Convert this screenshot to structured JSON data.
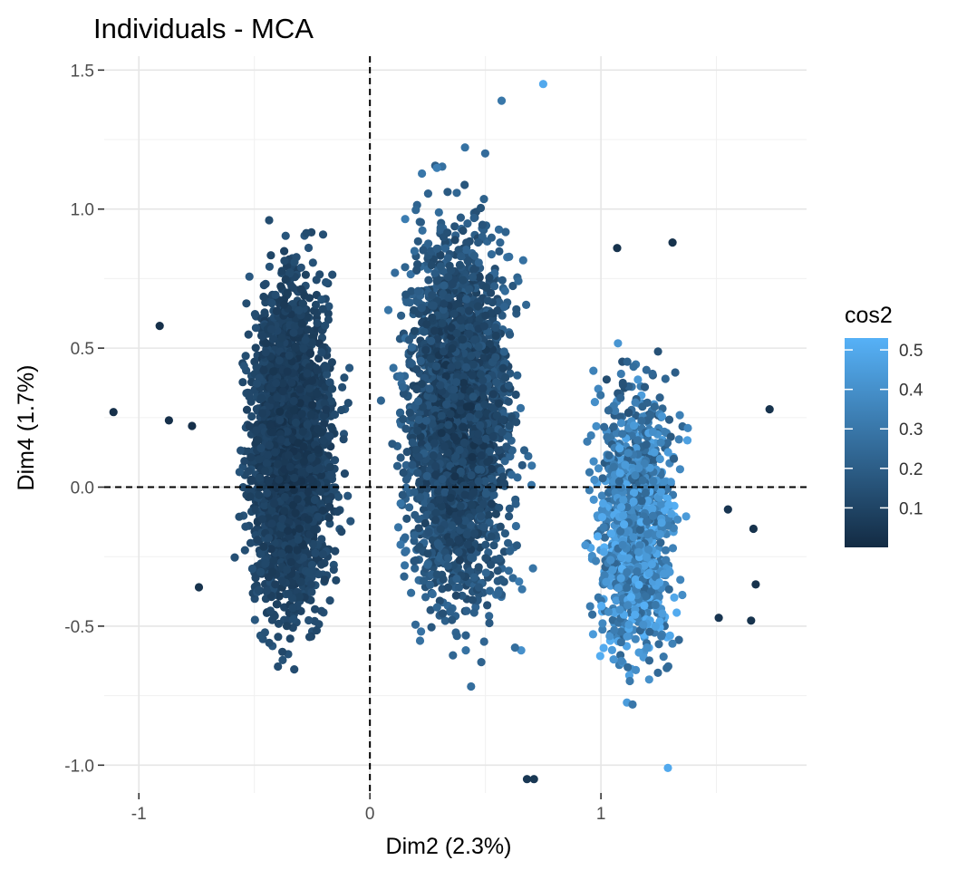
{
  "chart_data": {
    "type": "scatter",
    "title": "Individuals - MCA",
    "xlabel": "Dim2 (2.3%)",
    "ylabel": "Dim4 (1.7%)",
    "xlim": [
      -1.15,
      1.89
    ],
    "ylim": [
      -1.1,
      1.55
    ],
    "x_ticks": [
      -1,
      0,
      1
    ],
    "x_tick_labels": [
      "-1",
      "0",
      "1"
    ],
    "y_ticks": [
      -1.0,
      -0.5,
      0.0,
      0.5,
      1.0,
      1.5
    ],
    "y_tick_labels": [
      "-1.0",
      "-0.5",
      "0.0",
      "0.5",
      "1.0",
      "1.5"
    ],
    "grid": true,
    "reference_lines": {
      "x": 0,
      "y": 0,
      "style": "dashed"
    },
    "color_variable": "cos2",
    "legend": {
      "title": "cos2",
      "position": "right",
      "range": [
        0.0,
        0.53
      ],
      "ticks": [
        0.1,
        0.2,
        0.3,
        0.4,
        0.5
      ],
      "tick_labels": [
        "0.1",
        "0.2",
        "0.3",
        "0.4",
        "0.5"
      ],
      "low_color": "#132B43",
      "high_color": "#56B1F7"
    },
    "clusters": [
      {
        "name": "left",
        "x_range": [
          -0.65,
          -0.03
        ],
        "y_range": [
          -0.85,
          1.15
        ],
        "cos2_range": [
          0.02,
          0.22
        ],
        "density": "high"
      },
      {
        "name": "center",
        "x_range": [
          0.0,
          0.78
        ],
        "y_range": [
          -0.9,
          1.4
        ],
        "cos2_range": [
          0.02,
          0.4
        ],
        "density": "high"
      },
      {
        "name": "right",
        "x_range": [
          0.85,
          1.45
        ],
        "y_range": [
          -1.0,
          0.75
        ],
        "cos2_range": [
          0.05,
          0.53
        ],
        "density": "medium"
      }
    ],
    "outliers": [
      {
        "x": -1.11,
        "y": 0.27,
        "cos2": 0.02
      },
      {
        "x": -0.91,
        "y": 0.58,
        "cos2": 0.02
      },
      {
        "x": -0.87,
        "y": 0.24,
        "cos2": 0.02
      },
      {
        "x": -0.77,
        "y": 0.22,
        "cos2": 0.02
      },
      {
        "x": -0.74,
        "y": -0.36,
        "cos2": 0.03
      },
      {
        "x": 1.73,
        "y": 0.28,
        "cos2": 0.03
      },
      {
        "x": 1.65,
        "y": -0.48,
        "cos2": 0.03
      },
      {
        "x": 1.67,
        "y": -0.35,
        "cos2": 0.03
      },
      {
        "x": 1.66,
        "y": -0.15,
        "cos2": 0.03
      },
      {
        "x": 1.55,
        "y": -0.08,
        "cos2": 0.04
      },
      {
        "x": 1.51,
        "y": -0.47,
        "cos2": 0.04
      },
      {
        "x": 1.31,
        "y": 0.88,
        "cos2": 0.03
      },
      {
        "x": 1.07,
        "y": 0.86,
        "cos2": 0.03
      },
      {
        "x": 0.57,
        "y": 1.39,
        "cos2": 0.3
      },
      {
        "x": 0.75,
        "y": 1.45,
        "cos2": 0.5
      },
      {
        "x": 0.71,
        "y": -1.05,
        "cos2": 0.05
      },
      {
        "x": 0.68,
        "y": -1.05,
        "cos2": 0.05
      },
      {
        "x": 1.29,
        "y": -1.01,
        "cos2": 0.5
      }
    ]
  }
}
